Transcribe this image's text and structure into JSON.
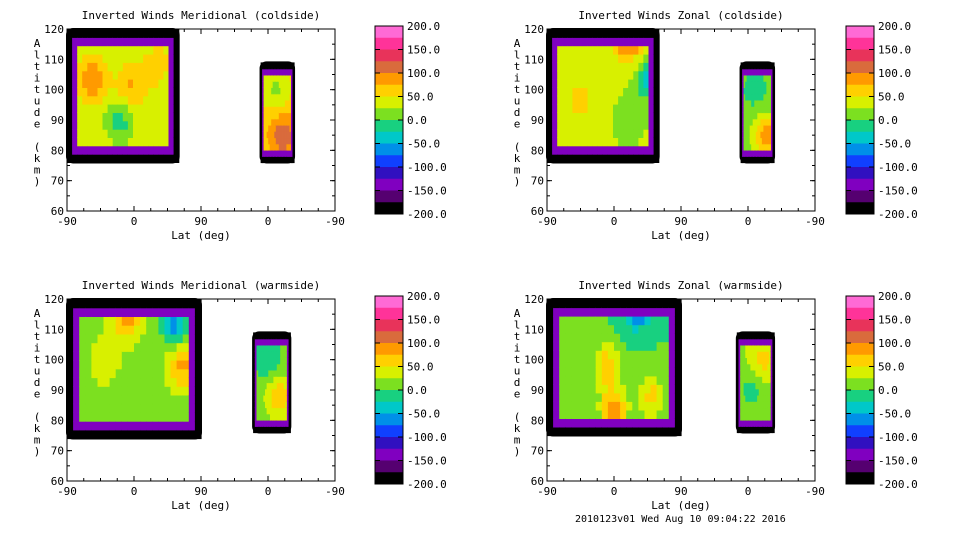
{
  "footer": "2010123v01 Wed Aug 10 09:04:22 2016",
  "chart_data": [
    {
      "type": "heatmap",
      "title": "Inverted Winds Meridional (coldside)",
      "xlabel": "Lat (deg)",
      "ylabel": "Altitude (km)",
      "xticks": [
        "-90",
        "0",
        "90",
        "0",
        "-90"
      ],
      "yticks": [
        "60",
        "70",
        "80",
        "90",
        "100",
        "110",
        "120"
      ],
      "ylim": [
        60,
        120
      ],
      "colorbar": {
        "min": -200,
        "max": 200,
        "ticks": [
          "200.0",
          "150.0",
          "100.0",
          "50.0",
          "0.0",
          "-50.0",
          "-100.0",
          "-150.0",
          "-200.0"
        ]
      },
      "regions": [
        {
          "x_range": [
            -90,
            60
          ],
          "alt_range": [
            76,
            120
          ],
          "mean_value": 40,
          "features": [
            {
              "x": -55,
              "alt": 103,
              "value": 100
            },
            {
              "x": -5,
              "alt": 100,
              "value": 80
            },
            {
              "x": -20,
              "alt": 90,
              "value": -20
            },
            {
              "x": 30,
              "alt": 108,
              "value": 60
            }
          ]
        },
        {
          "x_range": [
            170,
            215
          ],
          "alt_range": [
            76,
            109
          ],
          "mean_value": 60,
          "features": [
            {
              "x": 200,
              "alt": 85,
              "value": 120
            },
            {
              "x": 190,
              "alt": 100,
              "value": 20
            }
          ]
        }
      ]
    },
    {
      "type": "heatmap",
      "title": "Inverted Winds Zonal (coldside)",
      "xlabel": "Lat (deg)",
      "ylabel": "Altitude (km)",
      "xticks": [
        "-90",
        "0",
        "90",
        "0",
        "-90"
      ],
      "yticks": [
        "60",
        "70",
        "80",
        "90",
        "100",
        "110",
        "120"
      ],
      "ylim": [
        60,
        120
      ],
      "colorbar": {
        "min": -200,
        "max": 200,
        "ticks": [
          "200.0",
          "150.0",
          "100.0",
          "50.0",
          "0.0",
          "-50.0",
          "-100.0",
          "-150.0",
          "-200.0"
        ]
      },
      "regions": [
        {
          "x_range": [
            -90,
            60
          ],
          "alt_range": [
            76,
            120
          ],
          "mean_value": 30,
          "features": [
            {
              "x": 20,
              "alt": 118,
              "value": 140
            },
            {
              "x": -45,
              "alt": 97,
              "value": 60
            },
            {
              "x": 20,
              "alt": 90,
              "value": 0
            },
            {
              "x": 50,
              "alt": 103,
              "value": -40
            }
          ]
        },
        {
          "x_range": [
            170,
            215
          ],
          "alt_range": [
            76,
            109
          ],
          "mean_value": 10,
          "features": [
            {
              "x": 205,
              "alt": 85,
              "value": 90
            },
            {
              "x": 190,
              "alt": 100,
              "value": -10
            }
          ]
        }
      ]
    },
    {
      "type": "heatmap",
      "title": "Inverted Winds Meridional (warmside)",
      "xlabel": "Lat (deg)",
      "ylabel": "Altitude (km)",
      "xticks": [
        "-90",
        "0",
        "90",
        "0",
        "-90"
      ],
      "yticks": [
        "60",
        "70",
        "80",
        "90",
        "100",
        "110",
        "120"
      ],
      "ylim": [
        60,
        120
      ],
      "colorbar": {
        "min": -200,
        "max": 200,
        "ticks": [
          "200.0",
          "150.0",
          "100.0",
          "50.0",
          "0.0",
          "-50.0",
          "-100.0",
          "-150.0",
          "-200.0"
        ]
      },
      "regions": [
        {
          "x_range": [
            -90,
            90
          ],
          "alt_range": [
            74,
            120
          ],
          "mean_value": 20,
          "features": [
            {
              "x": -10,
              "alt": 115,
              "value": 90
            },
            {
              "x": 55,
              "alt": 112,
              "value": -60
            },
            {
              "x": 65,
              "alt": 98,
              "value": 80
            },
            {
              "x": -40,
              "alt": 100,
              "value": 40
            },
            {
              "x": 20,
              "alt": 88,
              "value": 0
            }
          ]
        },
        {
          "x_range": [
            160,
            210
          ],
          "alt_range": [
            76,
            109
          ],
          "mean_value": 10,
          "features": [
            {
              "x": 195,
              "alt": 88,
              "value": 70
            },
            {
              "x": 180,
              "alt": 100,
              "value": -20
            }
          ]
        }
      ]
    },
    {
      "type": "heatmap",
      "title": "Inverted Winds Zonal (warmside)",
      "xlabel": "Lat (deg)",
      "ylabel": "Altitude (km)",
      "xticks": [
        "-90",
        "0",
        "90",
        "0",
        "-90"
      ],
      "yticks": [
        "60",
        "70",
        "80",
        "90",
        "100",
        "110",
        "120"
      ],
      "ylim": [
        60,
        120
      ],
      "colorbar": {
        "min": -200,
        "max": 200,
        "ticks": [
          "200.0",
          "150.0",
          "100.0",
          "50.0",
          "0.0",
          "-50.0",
          "-100.0",
          "-150.0",
          "-200.0"
        ]
      },
      "regions": [
        {
          "x_range": [
            -90,
            90
          ],
          "alt_range": [
            75,
            120
          ],
          "mean_value": 0,
          "features": [
            {
              "x": 30,
              "alt": 118,
              "value": -100
            },
            {
              "x": -10,
              "alt": 98,
              "value": 70
            },
            {
              "x": 0,
              "alt": 84,
              "value": 90
            },
            {
              "x": 50,
              "alt": 88,
              "value": 60
            },
            {
              "x": -40,
              "alt": 110,
              "value": 20
            }
          ]
        },
        {
          "x_range": [
            165,
            215
          ],
          "alt_range": [
            76,
            109
          ],
          "mean_value": 20,
          "features": [
            {
              "x": 200,
              "alt": 100,
              "value": 60
            },
            {
              "x": 185,
              "alt": 90,
              "value": -10
            }
          ]
        }
      ]
    }
  ]
}
